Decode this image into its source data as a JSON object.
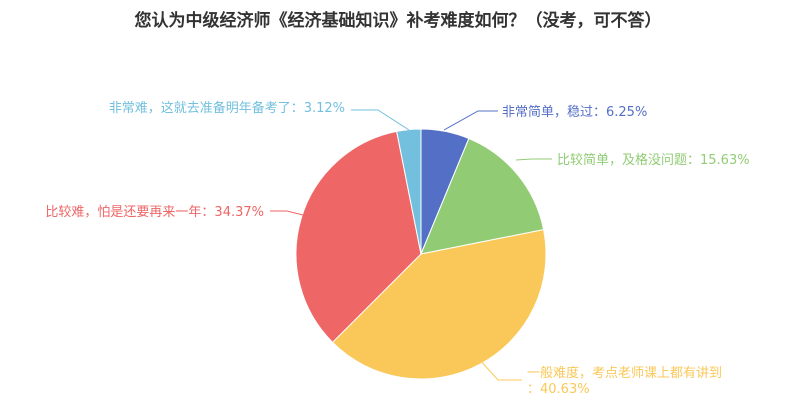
{
  "chart_data": {
    "type": "pie",
    "title": "您认为中级经济师《经济基础知识》补考难度如何？（没考，可不答）",
    "slices": [
      {
        "name": "非常简单，稳过",
        "value": 6.25,
        "display": "6.25%",
        "color": "#5470c6"
      },
      {
        "name": "比较简单，及格没问题",
        "value": 15.63,
        "display": "15.63%",
        "color": "#91cc75"
      },
      {
        "name": "一般难度，考点老师课上都有讲到",
        "value": 40.63,
        "display": "40.63%",
        "color": "#fac858"
      },
      {
        "name": "比较难，怕是还要再来一年",
        "value": 34.37,
        "display": "34.37%",
        "color": "#ee6666"
      },
      {
        "name": "非常难，这就去准备明年备考了",
        "value": 3.12,
        "display": "3.12%",
        "color": "#73c0de"
      }
    ]
  }
}
